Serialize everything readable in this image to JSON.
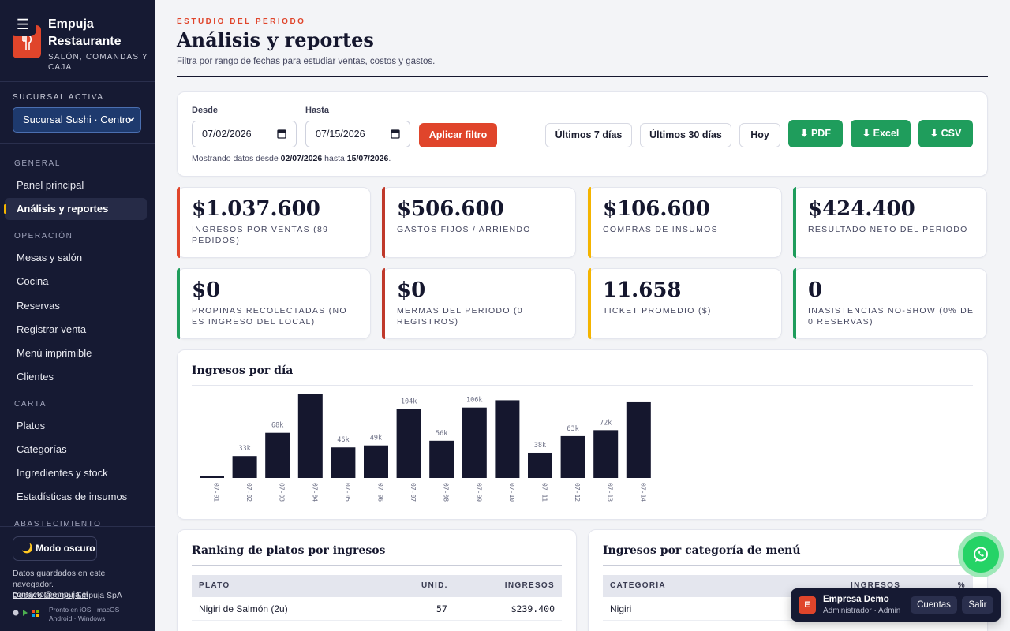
{
  "brand": {
    "title": "Empuja Restaurante",
    "subtitle": "SALÓN, COMANDAS Y CAJA",
    "menu_icon": "hamburger-icon",
    "logo_icon": "fork-knife-icon"
  },
  "branch": {
    "label": "SUCURSAL ACTIVA",
    "selected": "Sucursal Sushi · Centro"
  },
  "nav": {
    "sections": [
      {
        "title": "GENERAL",
        "items": [
          "Panel principal",
          "Análisis y reportes"
        ]
      },
      {
        "title": "OPERACIÓN",
        "items": [
          "Mesas y salón",
          "Cocina",
          "Reservas",
          "Registrar venta",
          "Menú imprimible",
          "Clientes"
        ]
      },
      {
        "title": "CARTA",
        "items": [
          "Platos",
          "Categorías",
          "Ingredientes y stock",
          "Estadísticas de insumos"
        ]
      },
      {
        "title": "ABASTECIMIENTO",
        "items": []
      }
    ],
    "active": "Análisis y reportes"
  },
  "sidebar_footer": {
    "dark_mode": "🌙 Modo oscuro",
    "saved_text": "Datos guardados en este navegador.",
    "dev_text": "Desarrollado por Empuja SpA",
    "contact": "contacto@empuja.cl",
    "platforms_line1": "Pronto en iOS · macOS ·",
    "platforms_line2": "Android · Windows"
  },
  "header": {
    "kicker": "ESTUDIO DEL PERIODO",
    "title": "Análisis y reportes",
    "description": "Filtra por rango de fechas para estudiar ventas, costos y gastos."
  },
  "filter": {
    "from_label": "Desde",
    "from_value": "07/02/2026",
    "to_label": "Hasta",
    "to_value": "07/15/2026",
    "apply": "Aplicar filtro",
    "note_prefix": "Mostrando datos desde",
    "note_from": "02/07/2026",
    "note_mid": "hasta",
    "note_to": "15/07/2026",
    "note_end": ".",
    "range_7": "Últimos 7 días",
    "range_30": "Últimos 30 días",
    "today": "Hoy",
    "pdf": "⬇ PDF",
    "excel": "⬇ Excel",
    "csv": "⬇ CSV"
  },
  "kpis": [
    {
      "value": "$1.037.600",
      "label": "INGRESOS POR VENTAS (89 PEDIDOS)",
      "accent": "#e0452b"
    },
    {
      "value": "$506.600",
      "label": "GASTOS FIJOS / ARRIENDO",
      "accent": "#c0392b"
    },
    {
      "value": "$106.600",
      "label": "COMPRAS DE INSUMOS",
      "accent": "#f4b400"
    },
    {
      "value": "$424.400",
      "label": "RESULTADO NETO DEL PERIODO",
      "accent": "#1f9d5c"
    },
    {
      "value": "$0",
      "label": "PROPINAS RECOLECTADAS (NO ES INGRESO DEL LOCAL)",
      "accent": "#1f9d5c"
    },
    {
      "value": "$0",
      "label": "MERMAS DEL PERIODO (0 REGISTROS)",
      "accent": "#c0392b"
    },
    {
      "value": "11.658",
      "label": "TICKET PROMEDIO ($)",
      "accent": "#f4b400"
    },
    {
      "value": "0",
      "label": "INASISTENCIAS NO-SHOW (0% DE 0 RESERVAS)",
      "accent": "#1f9d5c"
    }
  ],
  "chart_data": {
    "type": "bar",
    "title": "Ingresos por día",
    "categories": [
      "07-01",
      "07-02",
      "07-03",
      "07-04",
      "07-05",
      "07-06",
      "07-07",
      "07-08",
      "07-09",
      "07-10",
      "07-11",
      "07-12",
      "07-13",
      "07-14"
    ],
    "values": [
      2,
      33,
      68,
      127,
      46,
      49,
      104,
      56,
      106,
      117,
      38,
      63,
      72,
      114
    ],
    "data_labels": [
      "",
      "33k",
      "68k",
      "",
      "46k",
      "49k",
      "104k",
      "56k",
      "106k",
      "",
      "38k",
      "63k",
      "72k",
      ""
    ],
    "color": "#15172e",
    "grid": false
  },
  "ranking": {
    "title": "Ranking de platos por ingresos",
    "headers": [
      "PLATO",
      "UNID.",
      "INGRESOS"
    ],
    "rows": [
      {
        "plato": "Nigiri de Salmón (2u)",
        "unid": "57",
        "ingresos": "$239.400"
      }
    ]
  },
  "categories_table": {
    "title": "Ingresos por categoría de menú",
    "headers": [
      "CATEGORÍA",
      "INGRESOS",
      "%"
    ],
    "rows": [
      {
        "categoria": "Nigiri"
      }
    ]
  },
  "whatsapp": {
    "icon": "whatsapp-icon"
  },
  "account": {
    "initial": "E",
    "name": "Empresa Demo",
    "role": "Administrador · Admin",
    "accounts": "Cuentas",
    "logout": "Salir"
  }
}
